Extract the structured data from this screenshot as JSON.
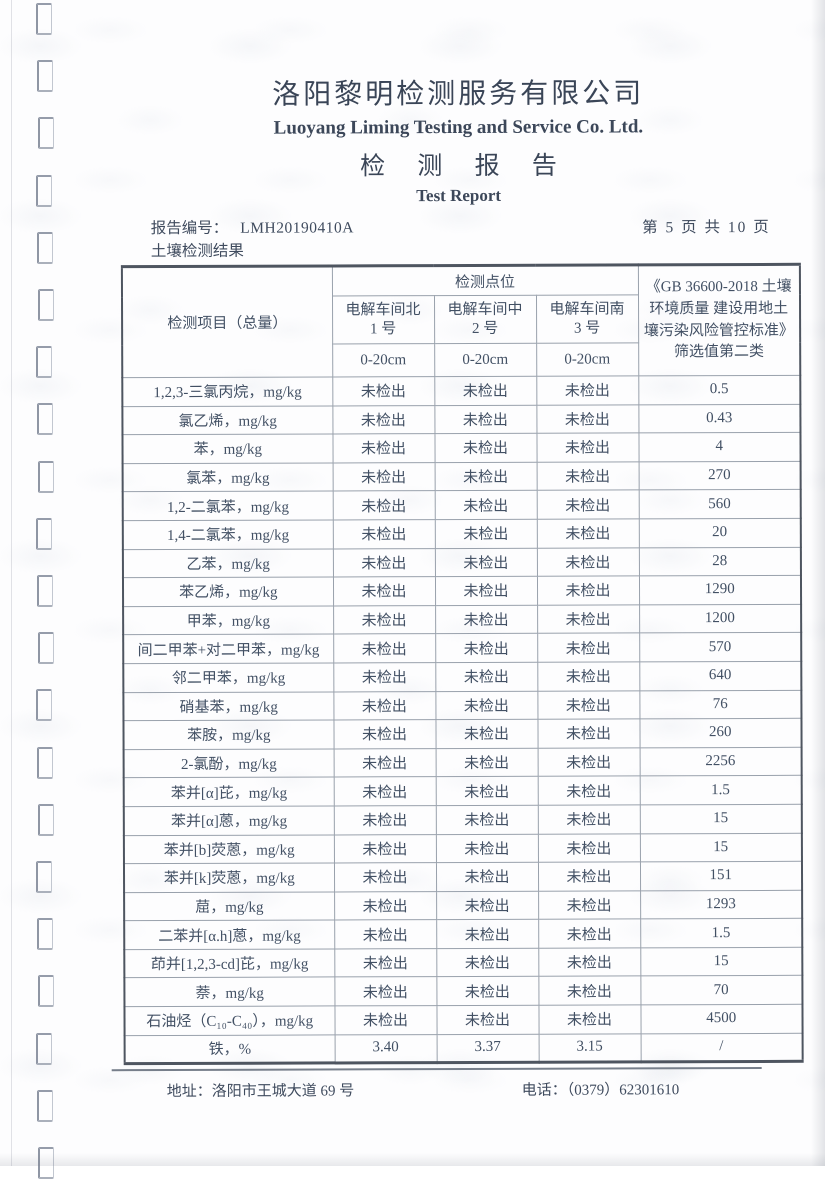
{
  "header": {
    "company_cn": "洛阳黎明检测服务有限公司",
    "company_en": "Luoyang Liming Testing and Service Co. Ltd.",
    "report_title_cn": "检 测 报 告",
    "report_title_en": "Test Report",
    "report_no_label": "报告编号：",
    "report_no": "LMH20190410A",
    "page_info": "第 5 页 共 10 页",
    "section_title": "土壤检测结果"
  },
  "table": {
    "item_header": "检测项目（总量）",
    "points_header": "检测点位",
    "point_columns": [
      {
        "name": "电解车间北",
        "no": "1 号",
        "depth": "0-20cm"
      },
      {
        "name": "电解车间中",
        "no": "2 号",
        "depth": "0-20cm"
      },
      {
        "name": "电解车间南",
        "no": "3 号",
        "depth": "0-20cm"
      }
    ],
    "standard_header": "《GB 36600-2018 土壤环境质量 建设用地土壤污染风险管控标准》筛选值第二类",
    "rows": [
      {
        "item": "1,2,3-三氯丙烷，mg/kg",
        "values": [
          "未检出",
          "未检出",
          "未检出"
        ],
        "limit": "0.5"
      },
      {
        "item": "氯乙烯，mg/kg",
        "values": [
          "未检出",
          "未检出",
          "未检出"
        ],
        "limit": "0.43"
      },
      {
        "item": "苯，mg/kg",
        "values": [
          "未检出",
          "未检出",
          "未检出"
        ],
        "limit": "4"
      },
      {
        "item": "氯苯，mg/kg",
        "values": [
          "未检出",
          "未检出",
          "未检出"
        ],
        "limit": "270"
      },
      {
        "item": "1,2-二氯苯，mg/kg",
        "values": [
          "未检出",
          "未检出",
          "未检出"
        ],
        "limit": "560"
      },
      {
        "item": "1,4-二氯苯，mg/kg",
        "values": [
          "未检出",
          "未检出",
          "未检出"
        ],
        "limit": "20"
      },
      {
        "item": "乙苯，mg/kg",
        "values": [
          "未检出",
          "未检出",
          "未检出"
        ],
        "limit": "28"
      },
      {
        "item": "苯乙烯，mg/kg",
        "values": [
          "未检出",
          "未检出",
          "未检出"
        ],
        "limit": "1290"
      },
      {
        "item": "甲苯，mg/kg",
        "values": [
          "未检出",
          "未检出",
          "未检出"
        ],
        "limit": "1200"
      },
      {
        "item": "间二甲苯+对二甲苯，mg/kg",
        "values": [
          "未检出",
          "未检出",
          "未检出"
        ],
        "limit": "570"
      },
      {
        "item": "邻二甲苯，mg/kg",
        "values": [
          "未检出",
          "未检出",
          "未检出"
        ],
        "limit": "640"
      },
      {
        "item": "硝基苯，mg/kg",
        "values": [
          "未检出",
          "未检出",
          "未检出"
        ],
        "limit": "76"
      },
      {
        "item": "苯胺，mg/kg",
        "values": [
          "未检出",
          "未检出",
          "未检出"
        ],
        "limit": "260"
      },
      {
        "item": "2-氯酚，mg/kg",
        "values": [
          "未检出",
          "未检出",
          "未检出"
        ],
        "limit": "2256"
      },
      {
        "item": "苯并[α]芘，mg/kg",
        "values": [
          "未检出",
          "未检出",
          "未检出"
        ],
        "limit": "1.5"
      },
      {
        "item": "苯并[α]蒽，mg/kg",
        "values": [
          "未检出",
          "未检出",
          "未检出"
        ],
        "limit": "15"
      },
      {
        "item": "苯并[b]荧蒽，mg/kg",
        "values": [
          "未检出",
          "未检出",
          "未检出"
        ],
        "limit": "15"
      },
      {
        "item": "苯并[k]荧蒽，mg/kg",
        "values": [
          "未检出",
          "未检出",
          "未检出"
        ],
        "limit": "151"
      },
      {
        "item": "䓛，mg/kg",
        "values": [
          "未检出",
          "未检出",
          "未检出"
        ],
        "limit": "1293"
      },
      {
        "item": "二苯并[α.h]蒽，mg/kg",
        "values": [
          "未检出",
          "未检出",
          "未检出"
        ],
        "limit": "1.5"
      },
      {
        "item": "茚并[1,2,3-cd]芘，mg/kg",
        "values": [
          "未检出",
          "未检出",
          "未检出"
        ],
        "limit": "15"
      },
      {
        "item": "萘，mg/kg",
        "values": [
          "未检出",
          "未检出",
          "未检出"
        ],
        "limit": "70"
      },
      {
        "item": "石油烃（C₁₀-C₄₀），mg/kg",
        "values": [
          "未检出",
          "未检出",
          "未检出"
        ],
        "limit": "4500"
      },
      {
        "item": "铁，%",
        "values": [
          "3.40",
          "3.37",
          "3.15"
        ],
        "limit": "/"
      }
    ]
  },
  "footer": {
    "address_label": "地址：",
    "address": "洛阳市王城大道 69 号",
    "phone_label": "电话：",
    "phone": "（0379）62301610"
  }
}
